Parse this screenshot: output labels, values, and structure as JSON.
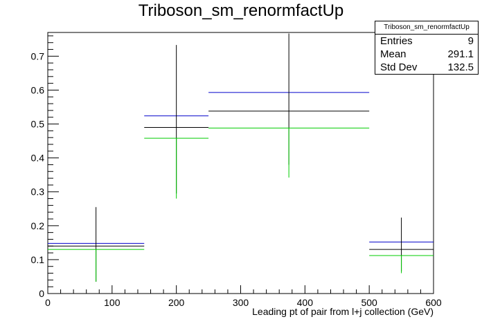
{
  "chart_data": {
    "type": "histogram",
    "title": "Triboson_sm_renormfactUp",
    "xlabel": "Leading pt of pair from l+j collection (GeV)",
    "ylabel": "",
    "xlim": [
      0,
      600
    ],
    "ylim": [
      0,
      0.77
    ],
    "xticks": [
      0,
      100,
      200,
      300,
      400,
      500,
      600
    ],
    "yticks": [
      0,
      0.1,
      0.2,
      0.3,
      0.4,
      0.5,
      0.6,
      0.7
    ],
    "bins": [
      {
        "x0": 0,
        "x1": 150,
        "xc": 75
      },
      {
        "x0": 150,
        "x1": 250,
        "xc": 200
      },
      {
        "x0": 250,
        "x1": 500,
        "xc": 375
      },
      {
        "x0": 500,
        "x1": 600,
        "xc": 550
      }
    ],
    "series": [
      {
        "color": "#0000cc",
        "values": [
          0.148,
          0.524,
          0.593,
          0.152
        ]
      },
      {
        "color": "#000000",
        "values": [
          0.14,
          0.49,
          0.538,
          0.13
        ],
        "err_low": [
          0.035,
          0.295,
          0.38,
          0.065
        ],
        "err_high": [
          0.255,
          0.733,
          0.767,
          0.224
        ]
      },
      {
        "color": "#00cc00",
        "values": [
          0.13,
          0.458,
          0.488,
          0.112
        ],
        "err_low": [
          0.035,
          0.28,
          0.342,
          0.06
        ]
      }
    ],
    "stats": {
      "name": "Triboson_sm_renormfactUp",
      "rows": [
        {
          "label": "Entries",
          "value": "9"
        },
        {
          "label": "Mean",
          "value": "291.1"
        },
        {
          "label": "Std Dev",
          "value": "132.5"
        }
      ]
    }
  }
}
